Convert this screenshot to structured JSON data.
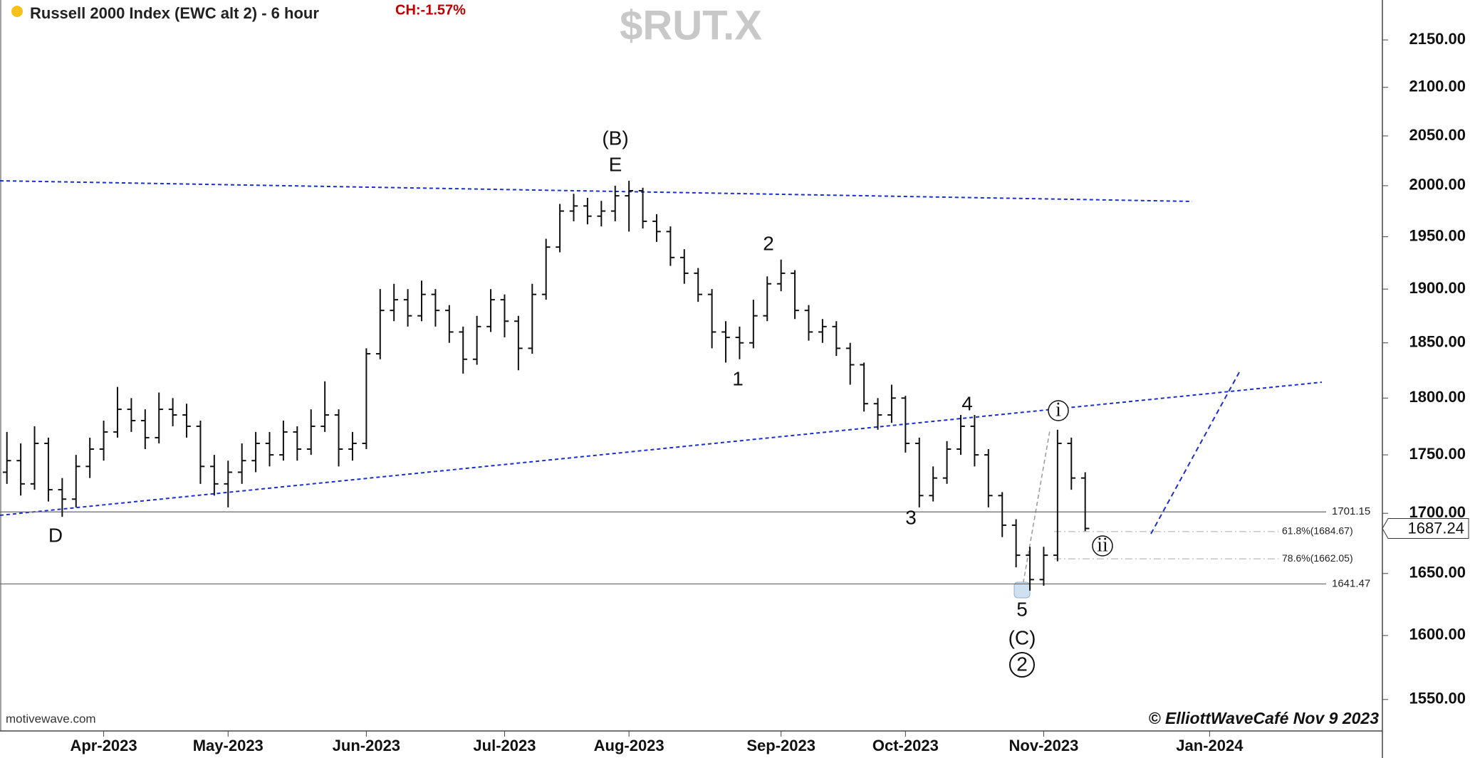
{
  "chart_data": {
    "type": "ohlc",
    "title": "Russell 2000 Index (EWC alt 2) - 6 hour",
    "change": "CH:-1.57%",
    "symbol": "$RUT.X",
    "source": "motivewave.com",
    "copyright": "© ElliottWaveCafé Nov 9 2023",
    "log_scale": true,
    "color": "#111111",
    "categories": [
      null,
      null,
      null,
      null,
      null,
      null,
      null,
      "Apr-2023",
      null,
      null,
      null,
      null,
      null,
      null,
      null,
      null,
      "May-2023",
      null,
      null,
      null,
      null,
      null,
      null,
      null,
      null,
      null,
      "Jun-2023",
      null,
      null,
      null,
      null,
      null,
      null,
      null,
      null,
      null,
      "Jul-2023",
      null,
      null,
      null,
      null,
      null,
      null,
      null,
      null,
      "Aug-2023",
      null,
      null,
      null,
      null,
      null,
      null,
      null,
      null,
      null,
      null,
      "Sep-2023",
      null,
      null,
      null,
      null,
      null,
      null,
      null,
      null,
      "Oct-2023",
      null,
      null,
      null,
      null,
      null,
      null,
      null,
      null,
      null,
      "Nov-2023",
      null,
      null,
      null,
      null,
      null,
      null,
      null,
      null,
      null,
      null,
      null,
      "Jan-2024",
      null,
      null,
      null,
      null,
      null,
      null,
      null,
      null,
      null,
      null,
      null,
      null
    ],
    "open": [
      1735,
      1745,
      1725,
      1760,
      1720,
      1712,
      1740,
      1755,
      1770,
      1790,
      1780,
      1765,
      1790,
      1785,
      1775,
      1740,
      1725,
      1735,
      1745,
      1760,
      1750,
      1770,
      1755,
      1775,
      1785,
      1755,
      1760,
      1840,
      1880,
      1890,
      1875,
      1895,
      1880,
      1860,
      1835,
      1865,
      1890,
      1870,
      1845,
      1895,
      1940,
      1975,
      1980,
      1970,
      1975,
      1990,
      1995,
      1965,
      1955,
      1930,
      1915,
      1895,
      1860,
      1855,
      1850,
      1875,
      1905,
      1915,
      1880,
      1860,
      1865,
      1845,
      1830,
      1795,
      1785,
      1800,
      1760,
      1715,
      1730,
      1755,
      1775,
      1750,
      1715,
      1690,
      1665,
      1645,
      1665,
      1760,
      1730,
      null,
      null,
      null,
      null,
      null,
      null,
      null,
      null,
      null,
      null,
      null,
      null,
      null,
      null,
      null,
      null,
      null,
      null,
      null,
      null,
      null
    ],
    "high": [
      1770,
      1760,
      1775,
      1765,
      1730,
      1750,
      1765,
      1780,
      1810,
      1800,
      1790,
      1805,
      1800,
      1795,
      1780,
      1750,
      1745,
      1760,
      1770,
      1770,
      1780,
      1775,
      1790,
      1815,
      1790,
      1770,
      1845,
      1900,
      1905,
      1900,
      1908,
      1900,
      1885,
      1865,
      1875,
      1900,
      1895,
      1875,
      1905,
      1948,
      1982,
      1992,
      1988,
      1985,
      2000,
      2005,
      1998,
      1972,
      1960,
      1938,
      1920,
      1900,
      1870,
      1865,
      1890,
      1912,
      1928,
      1918,
      1885,
      1872,
      1870,
      1850,
      1832,
      1800,
      1812,
      1802,
      1765,
      1740,
      1762,
      1785,
      1785,
      1755,
      1718,
      1695,
      1672,
      1672,
      1772,
      1765,
      1735,
      null,
      null,
      null,
      null,
      null,
      null,
      null,
      null,
      null,
      null,
      null,
      null,
      null,
      null,
      null,
      null,
      null,
      null,
      null,
      null,
      null
    ],
    "low": [
      1725,
      1715,
      1720,
      1710,
      1697,
      1705,
      1730,
      1745,
      1765,
      1770,
      1755,
      1760,
      1775,
      1765,
      1725,
      1715,
      1705,
      1725,
      1735,
      1740,
      1745,
      1745,
      1750,
      1770,
      1740,
      1745,
      1755,
      1835,
      1870,
      1865,
      1870,
      1865,
      1850,
      1822,
      1830,
      1860,
      1855,
      1825,
      1840,
      1890,
      1935,
      1965,
      1962,
      1960,
      1965,
      1955,
      1958,
      1945,
      1922,
      1905,
      1888,
      1845,
      1832,
      1835,
      1845,
      1870,
      1898,
      1872,
      1852,
      1850,
      1838,
      1812,
      1788,
      1772,
      1778,
      1752,
      1705,
      1710,
      1725,
      1750,
      1740,
      1705,
      1680,
      1655,
      1636,
      1640,
      1660,
      1720,
      1685,
      null,
      null,
      null,
      null,
      null,
      null,
      null,
      null,
      null,
      null,
      null,
      null,
      null,
      null,
      null,
      null,
      null,
      null,
      null,
      null,
      null
    ],
    "close": [
      1745,
      1725,
      1760,
      1720,
      1712,
      1740,
      1755,
      1770,
      1790,
      1780,
      1765,
      1790,
      1785,
      1775,
      1740,
      1725,
      1735,
      1745,
      1760,
      1750,
      1770,
      1755,
      1775,
      1785,
      1755,
      1760,
      1840,
      1880,
      1890,
      1875,
      1895,
      1880,
      1860,
      1835,
      1865,
      1890,
      1870,
      1845,
      1895,
      1940,
      1975,
      1980,
      1970,
      1975,
      1990,
      1995,
      1965,
      1955,
      1930,
      1915,
      1895,
      1860,
      1855,
      1850,
      1875,
      1905,
      1915,
      1880,
      1860,
      1865,
      1845,
      1830,
      1795,
      1785,
      1800,
      1760,
      1715,
      1730,
      1755,
      1775,
      1750,
      1715,
      1690,
      1665,
      1645,
      1665,
      1760,
      1730,
      1687.24,
      null,
      null,
      null,
      null,
      null,
      null,
      null,
      null,
      null,
      null,
      null,
      null,
      null,
      null,
      null,
      null,
      null,
      null,
      null,
      null,
      null
    ],
    "ylim": [
      1526,
      2193
    ],
    "yticks": [
      {
        "value": 1550,
        "label": "1550.00"
      },
      {
        "value": 1600,
        "label": "1600.00"
      },
      {
        "value": 1650,
        "label": "1650.00"
      },
      {
        "value": 1700,
        "label": "1700.00"
      },
      {
        "value": 1750,
        "label": "1750.00"
      },
      {
        "value": 1800,
        "label": "1800.00"
      },
      {
        "value": 1850,
        "label": "1850.00"
      },
      {
        "value": 1900,
        "label": "1900.00"
      },
      {
        "value": 1950,
        "label": "1950.00"
      },
      {
        "value": 2000,
        "label": "2000.00"
      },
      {
        "value": 2050,
        "label": "2050.00"
      },
      {
        "value": 2100,
        "label": "2100.00"
      },
      {
        "value": 2150,
        "label": "2150.00"
      }
    ],
    "levels": [
      1701.15,
      1641.47
    ],
    "fib_levels": [
      {
        "value": 1684.67,
        "label": "61.8%(1684.67)"
      },
      {
        "value": 1662.05,
        "label": "78.6%(1662.05)"
      }
    ],
    "last_price": 1687.24,
    "wave_labels": [
      "(B)",
      "E",
      "2",
      "1",
      "3",
      "4",
      "5",
      "(C)",
      "2",
      "D",
      "i",
      "ii"
    ]
  }
}
